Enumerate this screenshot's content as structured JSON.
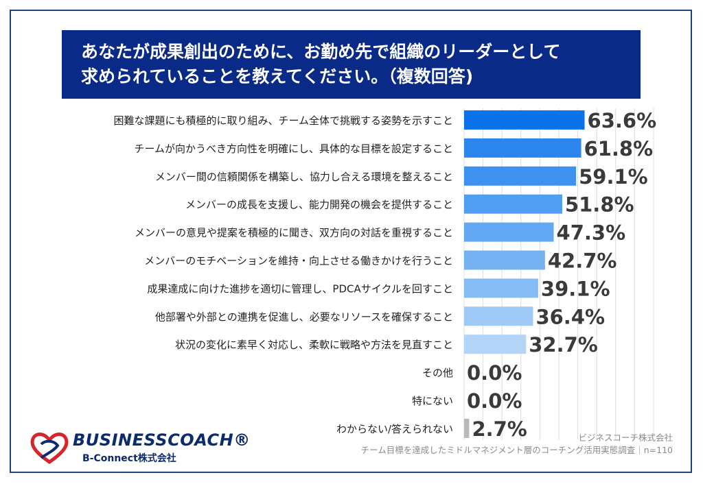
{
  "title": {
    "line1": "あなたが成果創出のために、お勤め先で組織のリーダーとして",
    "line2": "求められていることを教えてください。（複数回答)"
  },
  "chart_data": {
    "type": "bar",
    "orientation": "horizontal",
    "value_suffix": "%",
    "xlim": [
      0,
      100
    ],
    "grid": true,
    "categories": [
      "困難な課題にも積極的に取り組み、チーム全体で挑戦する姿勢を示すこと",
      "チームが向かうべき方向性を明確にし、具体的な目標を設定すること",
      "メンバー間の信頼関係を構築し、協力し合える環境を整えること",
      "メンバーの成長を支援し、能力開発の機会を提供すること",
      "メンバーの意見や提案を積極的に聞き、双方向の対話を重視すること",
      "メンバーのモチベーションを維持・向上させる働きかけを行うこと",
      "成果達成に向けた進捗を適切に管理し、PDCAサイクルを回すこと",
      "他部署や外部との連携を促進し、必要なリソースを確保すること",
      "状況の変化に素早く対応し、柔軟に戦略や方法を見直すこと",
      "その他",
      "特にない",
      "わからない/答えられない"
    ],
    "values": [
      63.6,
      61.8,
      59.1,
      51.8,
      47.3,
      42.7,
      39.1,
      36.4,
      32.7,
      0.0,
      0.0,
      2.7
    ],
    "labels": [
      "63.6%",
      "61.8%",
      "59.1%",
      "51.8%",
      "47.3%",
      "42.7%",
      "39.1%",
      "36.4%",
      "32.7%",
      "0.0%",
      "0.0%",
      "2.7%"
    ],
    "bar_colors": [
      "#0a72ea",
      "#2d86ee",
      "#3d92f0",
      "#509df1",
      "#62a8f2",
      "#74b2f3",
      "#86bcf4",
      "#9ec9f6",
      "#b1d4f7",
      "#b1d4f7",
      "#b1d4f7",
      "#b9b9b9"
    ]
  },
  "logo": {
    "main": "BUSINESSCOACH®",
    "sub": "B-Connect株式会社"
  },
  "source": {
    "company": "ビジネスコーチ株式会社",
    "survey": "チーム目標を達成したミドルマネジメント層のコーチング活用実態調査｜n=110"
  },
  "colors": {
    "title_bg": "#0a2a87",
    "frame": "#1f3f86",
    "logo_navy": "#0b2b6e",
    "logo_red": "#d6262b"
  }
}
